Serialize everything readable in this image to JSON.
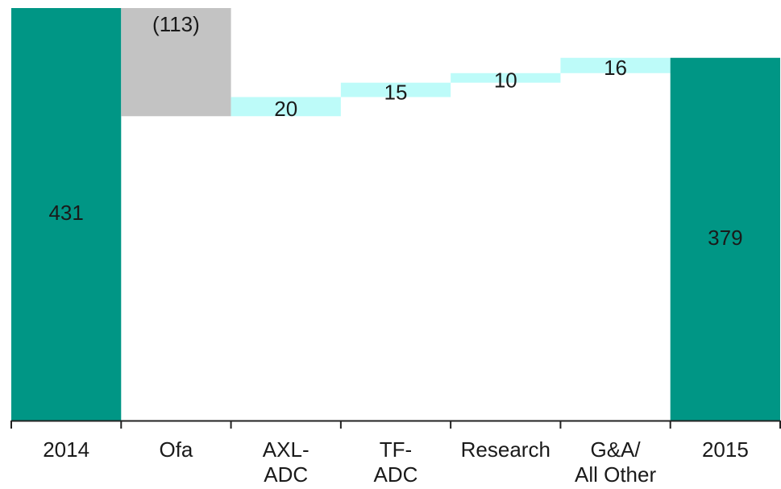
{
  "chart_data": {
    "type": "bar",
    "variant": "waterfall",
    "title": "",
    "xlabel": "",
    "ylabel": "",
    "grid": false,
    "legend": "none",
    "categories": [
      [
        "2014"
      ],
      [
        "Ofa"
      ],
      [
        "AXL-",
        "ADC"
      ],
      [
        "TF-",
        "ADC"
      ],
      [
        "Research"
      ],
      [
        "G&A/",
        "All Other"
      ],
      [
        "2015"
      ]
    ],
    "steps": [
      {
        "kind": "total",
        "value": 431,
        "label": "431"
      },
      {
        "kind": "delta",
        "value": -113,
        "label": "(113)"
      },
      {
        "kind": "delta",
        "value": 20,
        "label": "20"
      },
      {
        "kind": "delta",
        "value": 15,
        "label": "15"
      },
      {
        "kind": "delta",
        "value": 10,
        "label": "10"
      },
      {
        "kind": "delta",
        "value": 16,
        "label": "16"
      },
      {
        "kind": "total",
        "value": 379,
        "label": "379"
      }
    ],
    "colors": {
      "total": "#009685",
      "decrease": "#c3c3c3",
      "increase": "#bdfbf9",
      "axis": "#222222"
    }
  }
}
